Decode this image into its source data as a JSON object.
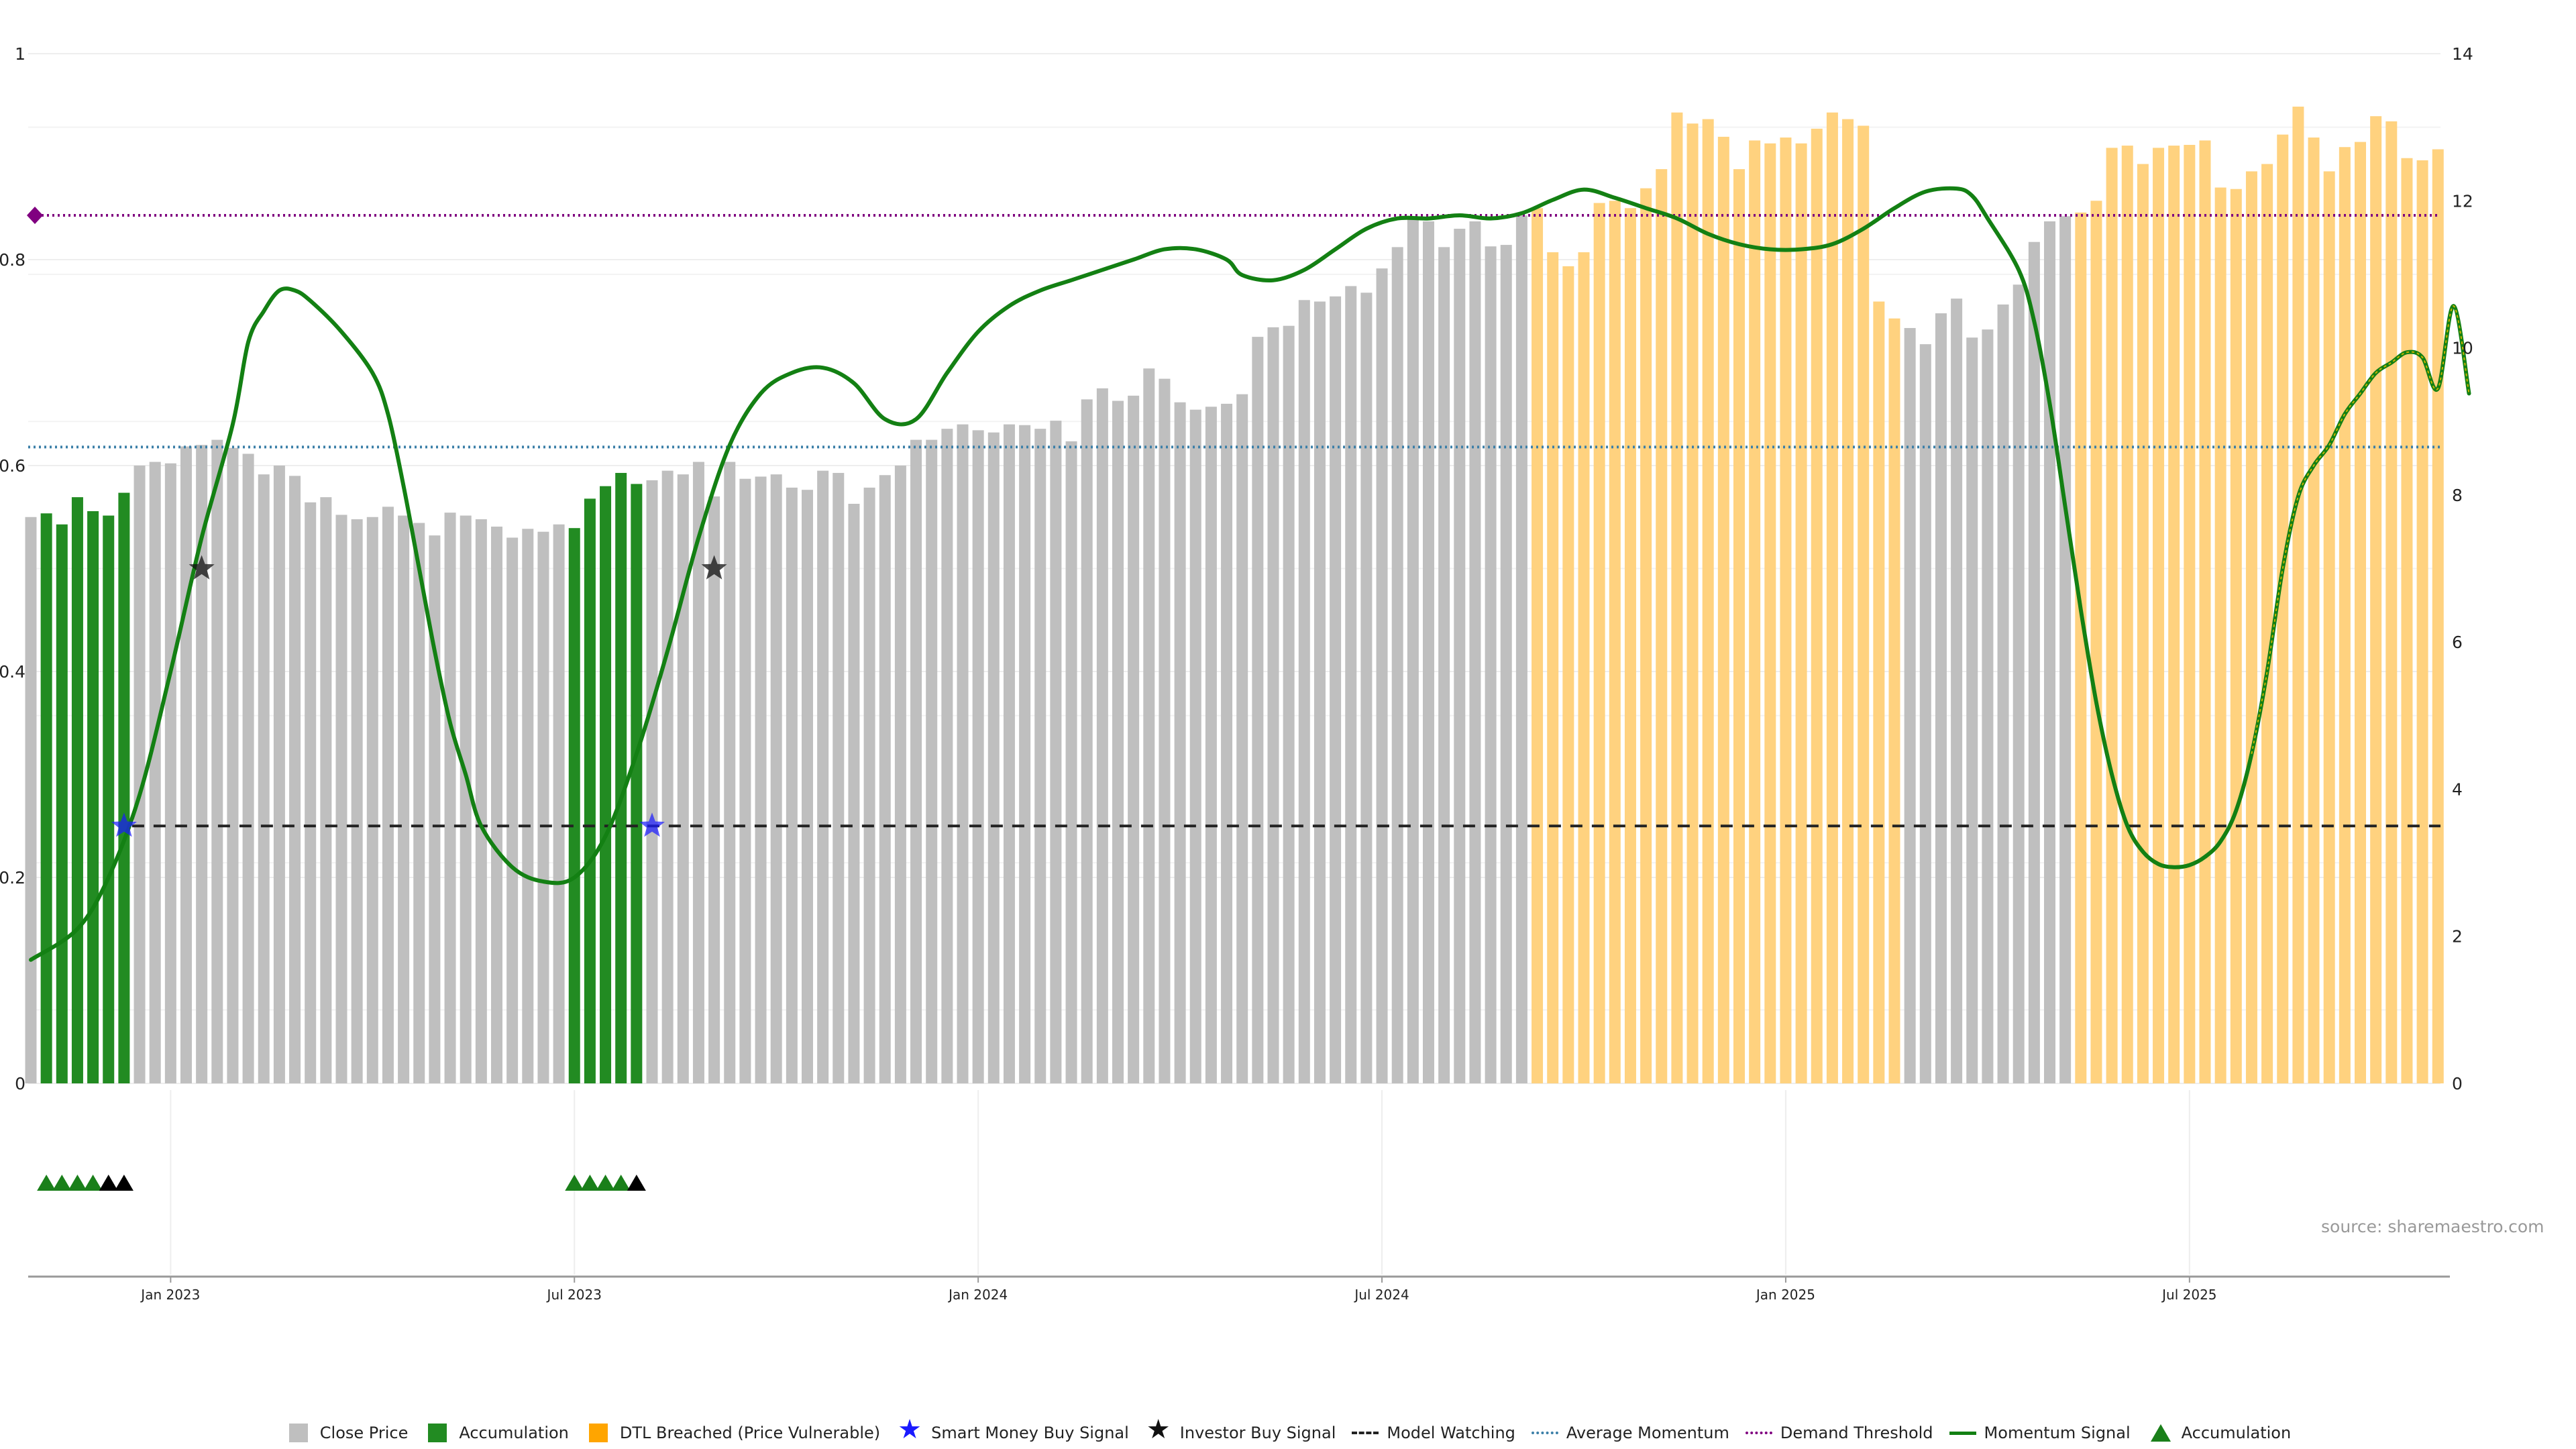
{
  "source": "source: sharemaestro.com",
  "legend": {
    "close_price": "Close Price",
    "accumulation_bar": "Accumulation",
    "dtl_breached": "DTL Breached (Price Vulnerable)",
    "smart_money": "Smart Money Buy Signal",
    "investor_buy": "Investor Buy Signal",
    "model_watching": "Model Watching",
    "avg_momentum": "Average Momentum",
    "demand_threshold": "Demand Threshold",
    "momentum_signal": "Momentum Signal",
    "accumulation_marker": "Accumulation"
  },
  "colors": {
    "close": "#bfbfbf",
    "accum": "#228b22",
    "dtl": "#ffd27f",
    "momentum": "#138013",
    "avg": "#3b7fa8",
    "threshold": "#800080",
    "watch": "#222222",
    "smart": "#1a1aff",
    "investor": "#111111",
    "marker": "#1a7f1a"
  },
  "chart_data": {
    "type": "bar",
    "x_axis": {
      "tick_labels": [
        "Jan 2023",
        "Jul 2023",
        "Jan 2024",
        "Jul 2024",
        "Jan 2025",
        "Jul 2025"
      ],
      "tick_bar_index": [
        9,
        35,
        61,
        87,
        113,
        139
      ],
      "range_weeks": [
        -9,
        148
      ]
    },
    "left_axis": {
      "ticks": [
        "0",
        "0.2",
        "0.4",
        "0.6",
        "0.8",
        "1"
      ],
      "ylim": [
        0,
        1
      ]
    },
    "right_axis": {
      "ticks": [
        "0",
        "2",
        "4",
        "6",
        "8",
        "10",
        "12",
        "14"
      ],
      "ylim": [
        0,
        14
      ]
    },
    "close_price": [
      7.7,
      7.75,
      7.6,
      7.97,
      7.78,
      7.72,
      8.03,
      8.4,
      8.45,
      8.43,
      8.66,
      8.68,
      8.75,
      8.64,
      8.56,
      8.28,
      8.4,
      8.26,
      7.9,
      7.97,
      7.73,
      7.67,
      7.7,
      7.84,
      7.72,
      7.62,
      7.45,
      7.76,
      7.72,
      7.67,
      7.57,
      7.42,
      7.54,
      7.5,
      7.6,
      7.55,
      7.95,
      8.12,
      8.3,
      8.15,
      8.2,
      8.33,
      8.28,
      8.45,
      7.98,
      8.45,
      8.22,
      8.25,
      8.28,
      8.1,
      8.07,
      8.33,
      8.3,
      7.88,
      8.1,
      8.27,
      8.4,
      8.75,
      8.75,
      8.9,
      8.96,
      8.88,
      8.85,
      8.96,
      8.95,
      8.9,
      9.01,
      8.73,
      9.3,
      9.45,
      9.28,
      9.35,
      9.72,
      9.58,
      9.26,
      9.16,
      9.2,
      9.24,
      9.37,
      10.15,
      10.28,
      10.3,
      10.65,
      10.63,
      10.7,
      10.84,
      10.75,
      11.08,
      11.37,
      11.75,
      11.72,
      11.37,
      11.62,
      11.72,
      11.38,
      11.4,
      11.8,
      11.9,
      11.3,
      11.11,
      11.3,
      11.97,
      12.0,
      11.9,
      12.17,
      12.43,
      13.2,
      13.05,
      13.11,
      12.87,
      12.43,
      12.82,
      12.78,
      12.86,
      12.78,
      12.98,
      13.2,
      13.11,
      13.02,
      10.63,
      10.4,
      10.27,
      10.05,
      10.47,
      10.67,
      10.14,
      10.25,
      10.59,
      10.86,
      11.44,
      11.72,
      11.79,
      11.84,
      12.0,
      12.72,
      12.75,
      12.5,
      12.72,
      12.75,
      12.76,
      12.82,
      12.18,
      12.16,
      12.4,
      12.5,
      12.9,
      13.28,
      12.86,
      12.4,
      12.73,
      12.8,
      13.15,
      13.08,
      12.58,
      12.55,
      12.7
    ],
    "accumulation_bar_index": [
      1,
      2,
      3,
      4,
      5,
      6,
      35,
      36,
      37,
      38,
      39
    ],
    "dtl_breach_ranges": [
      [
        97,
        101
      ],
      [
        102,
        120
      ],
      [
        132,
        157
      ]
    ],
    "momentum_signal": [
      [
        0,
        0.12
      ],
      [
        3,
        0.15
      ],
      [
        5,
        0.2
      ],
      [
        7,
        0.28
      ],
      [
        9,
        0.4
      ],
      [
        11,
        0.53
      ],
      [
        13,
        0.64
      ],
      [
        14,
        0.72
      ],
      [
        15,
        0.75
      ],
      [
        16,
        0.77
      ],
      [
        17,
        0.77
      ],
      [
        18,
        0.76
      ],
      [
        20,
        0.73
      ],
      [
        22,
        0.69
      ],
      [
        23,
        0.65
      ],
      [
        24,
        0.58
      ],
      [
        25,
        0.5
      ],
      [
        26,
        0.42
      ],
      [
        27,
        0.35
      ],
      [
        28,
        0.3
      ],
      [
        29,
        0.25
      ],
      [
        31,
        0.21
      ],
      [
        33,
        0.196
      ],
      [
        35,
        0.2
      ],
      [
        37,
        0.24
      ],
      [
        39,
        0.32
      ],
      [
        41,
        0.42
      ],
      [
        43,
        0.53
      ],
      [
        45,
        0.62
      ],
      [
        47,
        0.67
      ],
      [
        49,
        0.69
      ],
      [
        51,
        0.695
      ],
      [
        53,
        0.68
      ],
      [
        55,
        0.645
      ],
      [
        57,
        0.645
      ],
      [
        59,
        0.69
      ],
      [
        61,
        0.73
      ],
      [
        63,
        0.755
      ],
      [
        65,
        0.77
      ],
      [
        67,
        0.78
      ],
      [
        69,
        0.79
      ],
      [
        71,
        0.8
      ],
      [
        73,
        0.81
      ],
      [
        75,
        0.81
      ],
      [
        77,
        0.8
      ],
      [
        78,
        0.785
      ],
      [
        80,
        0.78
      ],
      [
        82,
        0.79
      ],
      [
        84,
        0.81
      ],
      [
        86,
        0.83
      ],
      [
        88,
        0.84
      ],
      [
        90,
        0.84
      ],
      [
        92,
        0.843
      ],
      [
        94,
        0.84
      ],
      [
        96,
        0.845
      ],
      [
        98,
        0.858
      ],
      [
        100,
        0.868
      ],
      [
        102,
        0.86
      ],
      [
        104,
        0.85
      ],
      [
        106,
        0.84
      ],
      [
        108,
        0.825
      ],
      [
        110,
        0.815
      ],
      [
        112,
        0.81
      ],
      [
        114,
        0.81
      ],
      [
        116,
        0.815
      ],
      [
        118,
        0.83
      ],
      [
        120,
        0.85
      ],
      [
        122,
        0.866
      ],
      [
        124,
        0.869
      ],
      [
        125,
        0.862
      ],
      [
        126,
        0.84
      ],
      [
        128,
        0.79
      ],
      [
        129,
        0.74
      ],
      [
        130,
        0.66
      ],
      [
        131,
        0.56
      ],
      [
        132,
        0.46
      ],
      [
        133,
        0.37
      ],
      [
        134,
        0.3
      ],
      [
        135,
        0.25
      ],
      [
        136,
        0.225
      ],
      [
        137,
        0.213
      ],
      [
        138,
        0.21
      ],
      [
        139,
        0.212
      ],
      [
        140,
        0.22
      ],
      [
        141,
        0.235
      ],
      [
        142,
        0.265
      ],
      [
        143,
        0.32
      ],
      [
        144,
        0.4
      ],
      [
        145,
        0.5
      ],
      [
        146,
        0.57
      ],
      [
        147,
        0.6
      ],
      [
        148,
        0.62
      ],
      [
        149,
        0.65
      ],
      [
        150,
        0.67
      ],
      [
        151,
        0.69
      ],
      [
        152,
        0.7
      ],
      [
        153,
        0.71
      ],
      [
        154,
        0.705
      ],
      [
        155,
        0.675
      ],
      [
        156,
        0.755
      ],
      [
        157,
        0.67
      ]
    ],
    "momentum_tail_dashed_from_index": 143,
    "average_momentum": 0.618,
    "demand_threshold": 0.843,
    "model_watching": 0.25,
    "smart_money_buy_signals": [
      [
        6,
        0.25
      ],
      [
        40,
        0.25
      ]
    ],
    "investor_buy_signals": [
      [
        11,
        0.5
      ],
      [
        44,
        0.5
      ]
    ],
    "accumulation_markers": {
      "green": [
        1,
        2,
        3,
        4,
        35,
        36,
        37,
        38
      ],
      "black": [
        5,
        6,
        39
      ]
    }
  }
}
